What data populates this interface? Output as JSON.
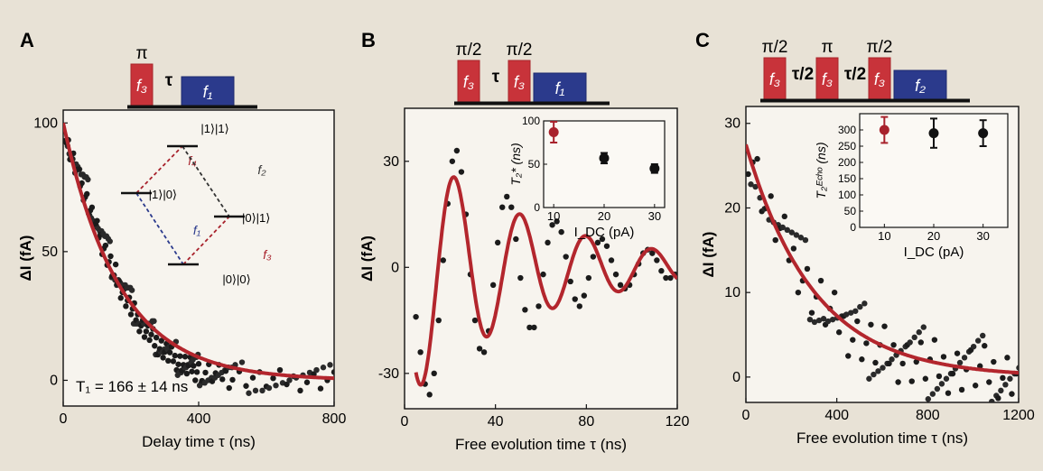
{
  "chart_data": [
    {
      "panel": "A",
      "type": "scatter",
      "xlabel": "Delay time τ (ns)",
      "ylabel": "ΔI (fA)",
      "xlim": [
        0,
        800
      ],
      "ylim": [
        -10,
        105
      ],
      "xticks": [
        0,
        400,
        800
      ],
      "yticks": [
        0,
        50,
        100
      ],
      "annotation": "T₁ = 166 ± 14 ns",
      "fit": {
        "model": "exponential",
        "amplitude": 100,
        "tau_ns": 166,
        "offset": 0
      },
      "pulse_sequence": [
        {
          "label": "f₃",
          "top_label": "π",
          "color": "#c8333a"
        },
        {
          "label": "τ",
          "kind": "gap"
        },
        {
          "label": "f₁",
          "color": "#2b3a8c"
        }
      ],
      "level_diagram": {
        "levels": [
          "|1⟩|1⟩",
          "|1⟩|0⟩",
          "|0⟩|1⟩",
          "|0⟩|0⟩"
        ],
        "transitions": [
          "f₄",
          "f₂",
          "f₁",
          "f₃"
        ]
      },
      "points": [
        [
          5,
          97
        ],
        [
          10,
          93
        ],
        [
          15,
          91
        ],
        [
          20,
          89
        ],
        [
          25,
          86
        ],
        [
          30,
          85
        ],
        [
          35,
          83
        ],
        [
          40,
          81
        ],
        [
          45,
          78
        ],
        [
          50,
          77
        ],
        [
          55,
          75
        ],
        [
          60,
          74
        ],
        [
          65,
          72
        ],
        [
          70,
          70
        ],
        [
          75,
          68
        ],
        [
          80,
          66
        ],
        [
          85,
          64
        ],
        [
          90,
          62
        ],
        [
          95,
          60
        ],
        [
          100,
          58
        ],
        [
          105,
          57
        ],
        [
          110,
          55
        ],
        [
          115,
          53
        ],
        [
          120,
          52
        ],
        [
          125,
          50
        ],
        [
          130,
          48
        ],
        [
          135,
          46
        ],
        [
          140,
          45
        ],
        [
          145,
          43
        ],
        [
          150,
          40
        ],
        [
          155,
          41
        ],
        [
          160,
          39
        ],
        [
          165,
          37
        ],
        [
          170,
          36
        ],
        [
          175,
          35
        ],
        [
          180,
          33
        ],
        [
          185,
          32
        ],
        [
          190,
          31
        ],
        [
          195,
          29
        ],
        [
          200,
          28
        ],
        [
          205,
          27
        ],
        [
          210,
          26
        ],
        [
          215,
          25
        ],
        [
          220,
          24
        ],
        [
          225,
          23
        ],
        [
          230,
          22
        ],
        [
          235,
          21
        ],
        [
          240,
          20
        ],
        [
          245,
          19
        ],
        [
          250,
          18
        ],
        [
          255,
          18
        ],
        [
          260,
          17
        ],
        [
          265,
          16
        ],
        [
          270,
          15
        ],
        [
          275,
          15
        ],
        [
          280,
          14
        ],
        [
          285,
          13
        ],
        [
          290,
          13
        ],
        [
          295,
          12
        ],
        [
          300,
          11
        ],
        [
          305,
          11
        ],
        [
          310,
          10
        ],
        [
          315,
          10
        ],
        [
          320,
          9
        ],
        [
          325,
          9
        ],
        [
          330,
          8
        ],
        [
          335,
          8
        ],
        [
          340,
          7
        ],
        [
          345,
          7
        ],
        [
          350,
          7
        ],
        [
          355,
          6
        ],
        [
          360,
          6
        ],
        [
          365,
          5
        ],
        [
          370,
          5
        ],
        [
          375,
          5
        ],
        [
          380,
          5
        ],
        [
          385,
          4
        ],
        [
          390,
          4
        ],
        [
          395,
          4
        ],
        [
          400,
          4
        ],
        [
          410,
          3
        ],
        [
          420,
          3
        ],
        [
          430,
          3
        ],
        [
          440,
          2
        ],
        [
          450,
          2
        ],
        [
          460,
          2
        ],
        [
          470,
          2
        ],
        [
          480,
          2
        ],
        [
          490,
          1
        ],
        [
          500,
          1
        ],
        [
          520,
          1
        ],
        [
          540,
          1
        ],
        [
          560,
          1
        ],
        [
          580,
          0
        ],
        [
          600,
          0
        ],
        [
          620,
          0
        ],
        [
          640,
          0
        ],
        [
          660,
          0
        ],
        [
          680,
          0
        ],
        [
          700,
          0
        ],
        [
          720,
          0
        ],
        [
          740,
          0
        ],
        [
          760,
          0
        ],
        [
          780,
          0
        ],
        [
          800,
          0
        ]
      ]
    },
    {
      "panel": "B",
      "type": "scatter",
      "xlabel": "Free evolution time τ (ns)",
      "ylabel": "ΔI (fA)",
      "xlim": [
        0,
        120
      ],
      "ylim": [
        -40,
        45
      ],
      "xticks": [
        0,
        40,
        80,
        120
      ],
      "yticks": [
        -30,
        0,
        30
      ],
      "fit": {
        "model": "damped_cosine",
        "amplitude": 38,
        "frequency_ghz": 0.0345,
        "decay_ns": 55,
        "t0_ns": 22
      },
      "pulse_sequence": [
        {
          "label": "f₃",
          "top_label": "π/2",
          "color": "#c8333a"
        },
        {
          "label": "τ",
          "kind": "gap"
        },
        {
          "label": "f₃",
          "top_label": "π/2",
          "color": "#c8333a"
        },
        {
          "label": "f₁",
          "color": "#2b3a8c"
        }
      ],
      "inset": {
        "ylabel": "T₂* (ns)",
        "xlabel": "I_DC (pA)",
        "xlim": [
          8,
          32
        ],
        "ylim": [
          0,
          100
        ],
        "xticks": [
          10,
          20,
          30
        ],
        "yticks": [
          0,
          50,
          100
        ],
        "points": [
          {
            "x": 10,
            "y": 87,
            "err": 12,
            "color": "#a8222c"
          },
          {
            "x": 20,
            "y": 57,
            "err": 6,
            "color": "#111111"
          },
          {
            "x": 30,
            "y": 45,
            "err": 5,
            "color": "#111111"
          }
        ]
      },
      "points": [
        [
          5,
          -14
        ],
        [
          7,
          -24
        ],
        [
          9,
          -33
        ],
        [
          11,
          -36
        ],
        [
          13,
          -30
        ],
        [
          15,
          -15
        ],
        [
          17,
          2
        ],
        [
          19,
          18
        ],
        [
          21,
          30
        ],
        [
          23,
          33
        ],
        [
          25,
          27
        ],
        [
          27,
          15
        ],
        [
          29,
          -2
        ],
        [
          31,
          -15
        ],
        [
          33,
          -23
        ],
        [
          35,
          -24
        ],
        [
          37,
          -18
        ],
        [
          39,
          -5
        ],
        [
          41,
          7
        ],
        [
          43,
          17
        ],
        [
          45,
          20
        ],
        [
          47,
          17
        ],
        [
          49,
          8
        ],
        [
          51,
          -3
        ],
        [
          53,
          -12
        ],
        [
          55,
          -17
        ],
        [
          57,
          -17
        ],
        [
          59,
          -11
        ],
        [
          61,
          -2
        ],
        [
          63,
          7
        ],
        [
          65,
          12
        ],
        [
          67,
          13
        ],
        [
          69,
          10
        ],
        [
          71,
          3
        ],
        [
          73,
          -4
        ],
        [
          75,
          -9
        ],
        [
          77,
          -11
        ],
        [
          79,
          -8
        ],
        [
          81,
          -3
        ],
        [
          83,
          3
        ],
        [
          85,
          7
        ],
        [
          87,
          8
        ],
        [
          89,
          6
        ],
        [
          91,
          2
        ],
        [
          93,
          -2
        ],
        [
          95,
          -5
        ],
        [
          97,
          -6
        ],
        [
          99,
          -5
        ],
        [
          101,
          -2
        ],
        [
          103,
          1
        ],
        [
          105,
          4
        ],
        [
          107,
          5
        ],
        [
          109,
          4
        ],
        [
          111,
          2
        ],
        [
          113,
          -1
        ],
        [
          115,
          -3
        ],
        [
          117,
          -3
        ],
        [
          119,
          -2
        ]
      ]
    },
    {
      "panel": "C",
      "type": "scatter",
      "xlabel": "Free evolution time τ (ns)",
      "ylabel": "ΔI (fA)",
      "xlim": [
        0,
        1200
      ],
      "ylim": [
        -3,
        32
      ],
      "xticks": [
        0,
        400,
        800,
        1200
      ],
      "yticks": [
        0,
        10,
        20,
        30
      ],
      "fit": {
        "model": "exponential",
        "amplitude": 27.5,
        "tau_ns": 300,
        "offset": 0
      },
      "pulse_sequence": [
        {
          "label": "f₃",
          "top_label": "π/2",
          "color": "#c8333a"
        },
        {
          "label": "τ/2",
          "kind": "gap"
        },
        {
          "label": "f₃",
          "top_label": "π",
          "color": "#c8333a"
        },
        {
          "label": "τ/2",
          "kind": "gap"
        },
        {
          "label": "f₃",
          "top_label": "π/2",
          "color": "#c8333a"
        },
        {
          "label": "f₂",
          "color": "#2b3a8c"
        }
      ],
      "inset": {
        "ylabel": "T₂ᴱᶜʰᵒ (ns)",
        "xlabel": "I_DC (pA)",
        "xlim": [
          5,
          35
        ],
        "ylim": [
          0,
          350
        ],
        "xticks": [
          10,
          20,
          30
        ],
        "yticks": [
          0,
          50,
          100,
          150,
          200,
          250,
          300
        ],
        "points": [
          {
            "x": 10,
            "y": 300,
            "err": 40,
            "color": "#a8222c"
          },
          {
            "x": 20,
            "y": 290,
            "err": 45,
            "color": "#111111"
          },
          {
            "x": 30,
            "y": 290,
            "err": 40,
            "color": "#111111"
          }
        ]
      },
      "points": [
        [
          10,
          27
        ],
        [
          30,
          26
        ],
        [
          50,
          24
        ],
        [
          70,
          22
        ],
        [
          90,
          20
        ],
        [
          110,
          19
        ],
        [
          130,
          18
        ],
        [
          150,
          17
        ],
        [
          170,
          16
        ],
        [
          190,
          15
        ],
        [
          210,
          14
        ],
        [
          230,
          13
        ],
        [
          250,
          12
        ],
        [
          270,
          11
        ],
        [
          290,
          10
        ],
        [
          310,
          9.5
        ],
        [
          330,
          9
        ],
        [
          350,
          8
        ],
        [
          370,
          7.5
        ],
        [
          390,
          7
        ],
        [
          410,
          6.5
        ],
        [
          430,
          6
        ],
        [
          450,
          5.5
        ],
        [
          470,
          5
        ],
        [
          490,
          4.8
        ],
        [
          510,
          4.5
        ],
        [
          530,
          4
        ],
        [
          550,
          3.8
        ],
        [
          570,
          3.5
        ],
        [
          590,
          3.2
        ],
        [
          610,
          3
        ],
        [
          630,
          2.8
        ],
        [
          650,
          2.6
        ],
        [
          670,
          2.4
        ],
        [
          690,
          2.2
        ],
        [
          710,
          2
        ],
        [
          730,
          1.9
        ],
        [
          750,
          1.8
        ],
        [
          770,
          1.7
        ],
        [
          790,
          1.6
        ],
        [
          810,
          1.5
        ],
        [
          830,
          1.4
        ],
        [
          850,
          1.3
        ],
        [
          870,
          1.2
        ],
        [
          890,
          1.1
        ],
        [
          910,
          1
        ],
        [
          930,
          1
        ],
        [
          950,
          0.9
        ],
        [
          970,
          0.9
        ],
        [
          990,
          0.8
        ],
        [
          1010,
          0.8
        ],
        [
          1030,
          0.7
        ],
        [
          1050,
          0.7
        ],
        [
          1070,
          0.6
        ],
        [
          1090,
          0.6
        ],
        [
          1110,
          0.5
        ],
        [
          1130,
          0.5
        ],
        [
          1150,
          0.5
        ],
        [
          1170,
          0.4
        ],
        [
          1190,
          0.4
        ]
      ]
    }
  ]
}
